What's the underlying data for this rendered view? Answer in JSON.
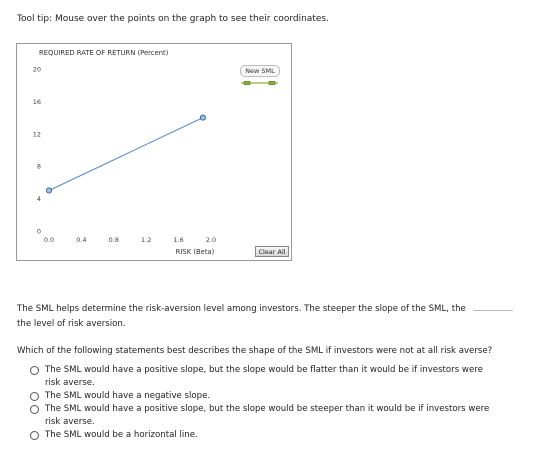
{
  "tooltip_note": "Tool tip: Mouse over the points on the graph to see their coordinates.",
  "graph": {
    "y_axis_title": "REQUIRED RATE OF RETURN (Percent)",
    "x_axis_title": "RISK (Beta)",
    "new_sml_label": "New SML",
    "clear_all_label": "Clear All",
    "line_color": "#5b8fc6",
    "point_color": "#5b8fc6",
    "legend_line_color": "#8bb03a"
  },
  "chart_data": {
    "type": "line",
    "xlabel": "RISK (Beta)",
    "ylabel": "REQUIRED RATE OF RETURN (Percent)",
    "xlim": [
      0.0,
      2.0
    ],
    "ylim": [
      0,
      20
    ],
    "x_ticks": [
      "0.0",
      "0.4",
      "0.8",
      "1.2",
      "1.6",
      "2.0"
    ],
    "y_ticks": [
      "0",
      "4",
      "8",
      "12",
      "16",
      "20"
    ],
    "series": [
      {
        "x": [
          0.0,
          1.9
        ],
        "y": [
          5,
          14
        ]
      }
    ]
  },
  "question1": {
    "text": "The SML helps determine the risk-aversion level among investors. The steeper the slope of the SML, the",
    "continuation": "the level of risk aversion."
  },
  "question2": {
    "prompt": "Which of the following statements best describes the shape of the SML if investors were not at all risk averse?",
    "options": [
      "The SML would have a positive slope, but the slope would be flatter than it would be if investors were risk averse.",
      "The SML would have a negative slope.",
      "The SML would have a positive slope, but the slope would be steeper than it would be if investors were risk averse.",
      "The SML would be a horizontal line."
    ]
  }
}
